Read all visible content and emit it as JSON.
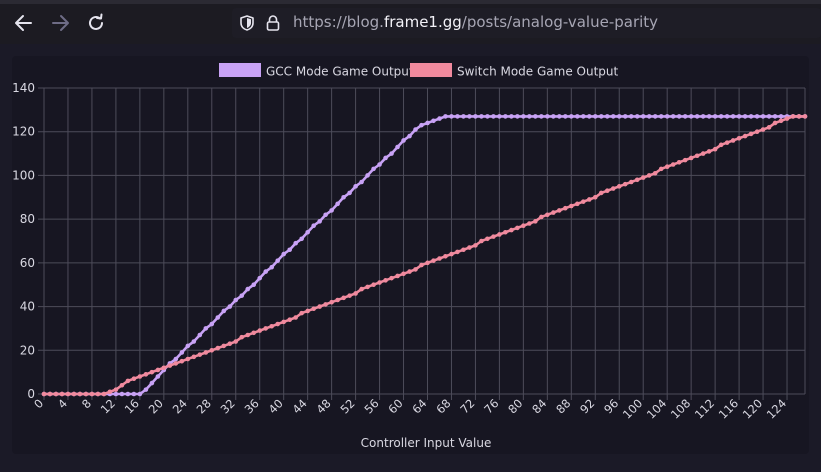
{
  "browser": {
    "url_prefix": "https://blog.",
    "url_domain": "frame1.gg",
    "url_path": "/posts/analog-value-parity"
  },
  "colors": {
    "gcc": "#c8a2f5",
    "switch": "#f08a9e",
    "grid": "#4d4c5a",
    "text": "#d9d8e2"
  },
  "chart_data": {
    "type": "line",
    "xlabel": "Controller Input Value",
    "ylabel": "",
    "ylim": [
      0,
      140
    ],
    "yticks": [
      0,
      20,
      40,
      60,
      80,
      100,
      120,
      140
    ],
    "x": [
      0,
      1,
      2,
      3,
      4,
      5,
      6,
      7,
      8,
      9,
      10,
      11,
      12,
      13,
      14,
      15,
      16,
      17,
      18,
      19,
      20,
      21,
      22,
      23,
      24,
      25,
      26,
      27,
      28,
      29,
      30,
      31,
      32,
      33,
      34,
      35,
      36,
      37,
      38,
      39,
      40,
      41,
      42,
      43,
      44,
      45,
      46,
      47,
      48,
      49,
      50,
      51,
      52,
      53,
      54,
      55,
      56,
      57,
      58,
      59,
      60,
      61,
      62,
      63,
      64,
      65,
      66,
      67,
      68,
      69,
      70,
      71,
      72,
      73,
      74,
      75,
      76,
      77,
      78,
      79,
      80,
      81,
      82,
      83,
      84,
      85,
      86,
      87,
      88,
      89,
      90,
      91,
      92,
      93,
      94,
      95,
      96,
      97,
      98,
      99,
      100,
      101,
      102,
      103,
      104,
      105,
      106,
      107,
      108,
      109,
      110,
      111,
      112,
      113,
      114,
      115,
      116,
      117,
      118,
      119,
      120,
      121,
      122,
      123,
      124,
      125,
      126,
      127
    ],
    "xtick_labels": [
      "0",
      "4",
      "8",
      "12",
      "16",
      "20",
      "24",
      "28",
      "32",
      "36",
      "40",
      "44",
      "48",
      "52",
      "56",
      "60",
      "64",
      "68",
      "72",
      "76",
      "80",
      "84",
      "88",
      "92",
      "96",
      "100",
      "104",
      "108",
      "112",
      "116",
      "120",
      "124"
    ],
    "legend_position": "top-center",
    "grid": true,
    "series": [
      {
        "name": "GCC Mode Game Output",
        "values": [
          0,
          0,
          0,
          0,
          0,
          0,
          0,
          0,
          0,
          0,
          0,
          0,
          0,
          0,
          0,
          0,
          0,
          2,
          5,
          8,
          11,
          14,
          16,
          19,
          22,
          24,
          27,
          30,
          32,
          35,
          38,
          40,
          43,
          45,
          48,
          50,
          53,
          56,
          58,
          61,
          64,
          66,
          69,
          71,
          74,
          77,
          79,
          82,
          84,
          87,
          90,
          92,
          95,
          97,
          100,
          103,
          105,
          108,
          110,
          113,
          116,
          118,
          121,
          123,
          124,
          125,
          126,
          127,
          127,
          127,
          127,
          127,
          127,
          127,
          127,
          127,
          127,
          127,
          127,
          127,
          127,
          127,
          127,
          127,
          127,
          127,
          127,
          127,
          127,
          127,
          127,
          127,
          127,
          127,
          127,
          127,
          127,
          127,
          127,
          127,
          127,
          127,
          127,
          127,
          127,
          127,
          127,
          127,
          127,
          127,
          127,
          127,
          127,
          127,
          127,
          127,
          127,
          127,
          127,
          127,
          127,
          127,
          127,
          127,
          127,
          127,
          127,
          127
        ]
      },
      {
        "name": "Switch Mode Game Output",
        "values": [
          0,
          0,
          0,
          0,
          0,
          0,
          0,
          0,
          0,
          0,
          0,
          1,
          2,
          4,
          6,
          7,
          8,
          9,
          10,
          11,
          12,
          13,
          14,
          15,
          16,
          17,
          18,
          19,
          20,
          21,
          22,
          23,
          24,
          26,
          27,
          28,
          29,
          30,
          31,
          32,
          33,
          34,
          35,
          37,
          38,
          39,
          40,
          41,
          42,
          43,
          44,
          45,
          46,
          48,
          49,
          50,
          51,
          52,
          53,
          54,
          55,
          56,
          57,
          59,
          60,
          61,
          62,
          63,
          64,
          65,
          66,
          67,
          68,
          70,
          71,
          72,
          73,
          74,
          75,
          76,
          77,
          78,
          79,
          81,
          82,
          83,
          84,
          85,
          86,
          87,
          88,
          89,
          90,
          92,
          93,
          94,
          95,
          96,
          97,
          98,
          99,
          100,
          101,
          103,
          104,
          105,
          106,
          107,
          108,
          109,
          110,
          111,
          112,
          114,
          115,
          116,
          117,
          118,
          119,
          120,
          121,
          122,
          124,
          125,
          126,
          127,
          127,
          127
        ]
      }
    ]
  }
}
